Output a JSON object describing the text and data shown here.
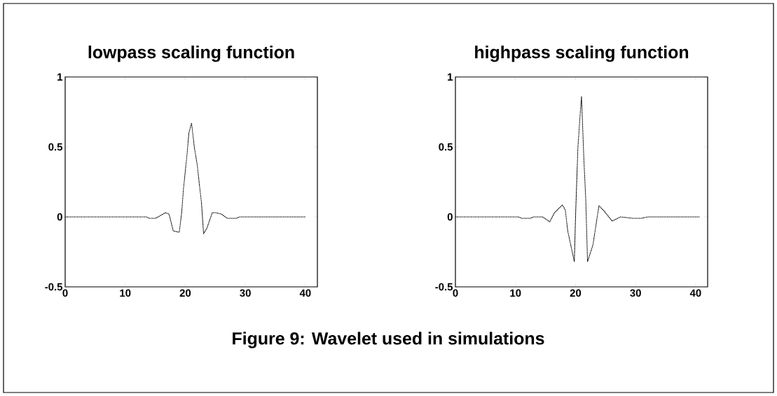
{
  "chart_data": [
    {
      "type": "line",
      "title": "lowpass scaling function",
      "annotations": [
        "Figure 9: Wavelet used in simulations"
      ],
      "xlim": [
        0,
        42
      ],
      "ylim": [
        -0.5,
        1
      ],
      "xticks": [
        0,
        10,
        20,
        30,
        40
      ],
      "yticks": [
        -0.5,
        0,
        0.5,
        1
      ],
      "marker": "none",
      "line_style": "dotted",
      "x": [
        0,
        13.5,
        14,
        15,
        15.5,
        16.7,
        17.3,
        18,
        19,
        19.4,
        19.7,
        20.3,
        20.6,
        21.05,
        21.5,
        22,
        22.3,
        22.7,
        23.05,
        23.6,
        24.5,
        25.1,
        26,
        27,
        28.5,
        29,
        40
      ],
      "series": [
        {
          "color": "#000000",
          "values": [
            0,
            0,
            -0.01,
            -0.01,
            0,
            0.03,
            0.02,
            -0.1,
            -0.11,
            0.03,
            0.2,
            0.45,
            0.6,
            0.67,
            0.5,
            0.37,
            0.25,
            0.1,
            -0.12,
            -0.08,
            0.03,
            0.03,
            0.02,
            -0.01,
            -0.01,
            0,
            0
          ]
        }
      ]
    },
    {
      "type": "line",
      "title": "highpass scaling function",
      "xlim": [
        0,
        42
      ],
      "ylim": [
        -0.5,
        1
      ],
      "xticks": [
        0,
        10,
        20,
        30,
        40
      ],
      "yticks": [
        -0.5,
        0,
        0.5,
        1
      ],
      "marker": "none",
      "line_style": "dotted",
      "x": [
        0,
        10.5,
        11,
        12.5,
        13,
        14.5,
        15.7,
        16.5,
        17.8,
        18.3,
        18.7,
        19.8,
        20.0,
        20.4,
        20.8,
        21.0,
        21.4,
        21.7,
        22.0,
        22.9,
        23.9,
        24.8,
        26.1,
        27.5,
        29.5,
        31,
        32,
        40.6
      ],
      "series": [
        {
          "color": "#000000",
          "values": [
            0,
            0,
            -0.01,
            -0.01,
            0,
            0,
            -0.035,
            0.03,
            0.085,
            0.05,
            -0.1,
            -0.32,
            0,
            0.5,
            0.75,
            0.86,
            0.4,
            0.13,
            -0.32,
            -0.2,
            0.08,
            0.04,
            -0.03,
            0,
            -0.01,
            -0.01,
            0,
            0
          ]
        }
      ]
    }
  ]
}
